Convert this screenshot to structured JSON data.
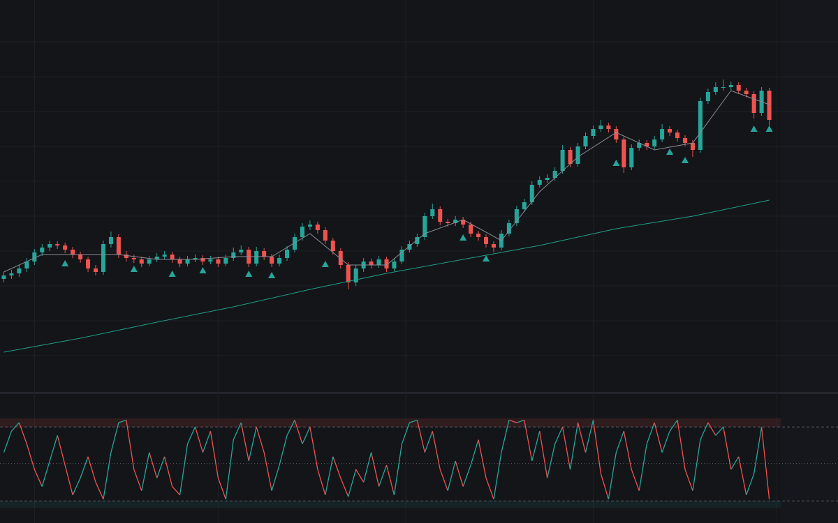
{
  "chart_data": [
    {
      "type": "candlestick",
      "up_color": "#26a69a",
      "down_color": "#ef5350",
      "ylim": [
        0,
        560
      ],
      "yticks": [
        50,
        100,
        150,
        200,
        250,
        300,
        350,
        400,
        450,
        500
      ],
      "xlim": [
        -0.5,
        101.5
      ],
      "xticks": [
        4,
        28,
        52.5,
        77,
        101
      ],
      "grid": true,
      "candles": [
        [
          160,
          170,
          155,
          165
        ],
        [
          165,
          173,
          160,
          168
        ],
        [
          168,
          180,
          163,
          175
        ],
        [
          175,
          190,
          170,
          185
        ],
        [
          185,
          203,
          180,
          198
        ],
        [
          198,
          210,
          193,
          205
        ],
        [
          205,
          215,
          200,
          210
        ],
        [
          210,
          214,
          203,
          208
        ],
        [
          208,
          212,
          197,
          202
        ],
        [
          202,
          206,
          190,
          195
        ],
        [
          195,
          199,
          183,
          188
        ],
        [
          188,
          192,
          170,
          175
        ],
        [
          175,
          180,
          165,
          170
        ],
        [
          170,
          215,
          166,
          210
        ],
        [
          210,
          228,
          205,
          220
        ],
        [
          220,
          224,
          190,
          195
        ],
        [
          195,
          200,
          185,
          190
        ],
        [
          190,
          195,
          183,
          188
        ],
        [
          188,
          192,
          177,
          182
        ],
        [
          182,
          193,
          178,
          188
        ],
        [
          188,
          197,
          184,
          192
        ],
        [
          192,
          200,
          188,
          195
        ],
        [
          195,
          199,
          183,
          188
        ],
        [
          188,
          192,
          177,
          182
        ],
        [
          182,
          193,
          178,
          188
        ],
        [
          188,
          195,
          184,
          190
        ],
        [
          190,
          194,
          180,
          185
        ],
        [
          185,
          193,
          181,
          188
        ],
        [
          188,
          192,
          177,
          182
        ],
        [
          182,
          195,
          178,
          190
        ],
        [
          190,
          205,
          186,
          198
        ],
        [
          198,
          208,
          194,
          202
        ],
        [
          202,
          206,
          177,
          182
        ],
        [
          182,
          206,
          178,
          200
        ],
        [
          200,
          204,
          187,
          192
        ],
        [
          192,
          196,
          177,
          182
        ],
        [
          182,
          195,
          178,
          190
        ],
        [
          190,
          207,
          186,
          202
        ],
        [
          202,
          225,
          198,
          220
        ],
        [
          220,
          240,
          215,
          235
        ],
        [
          235,
          244,
          230,
          238
        ],
        [
          238,
          242,
          225,
          230
        ],
        [
          230,
          234,
          210,
          215
        ],
        [
          215,
          219,
          195,
          200
        ],
        [
          200,
          204,
          175,
          180
        ],
        [
          180,
          184,
          145,
          155
        ],
        [
          155,
          180,
          150,
          175
        ],
        [
          175,
          190,
          170,
          185
        ],
        [
          185,
          189,
          175,
          180
        ],
        [
          180,
          193,
          176,
          188
        ],
        [
          188,
          192,
          170,
          175
        ],
        [
          175,
          190,
          171,
          185
        ],
        [
          185,
          207,
          181,
          202
        ],
        [
          202,
          215,
          198,
          210
        ],
        [
          210,
          225,
          206,
          220
        ],
        [
          220,
          255,
          216,
          250
        ],
        [
          250,
          268,
          246,
          260
        ],
        [
          260,
          264,
          237,
          242
        ],
        [
          242,
          246,
          235,
          240
        ],
        [
          240,
          250,
          236,
          245
        ],
        [
          245,
          249,
          233,
          238
        ],
        [
          238,
          242,
          220,
          225
        ],
        [
          225,
          229,
          215,
          220
        ],
        [
          220,
          224,
          205,
          210
        ],
        [
          210,
          214,
          198,
          205
        ],
        [
          205,
          230,
          201,
          225
        ],
        [
          225,
          245,
          221,
          240
        ],
        [
          240,
          265,
          236,
          260
        ],
        [
          260,
          275,
          256,
          270
        ],
        [
          270,
          300,
          266,
          295
        ],
        [
          295,
          307,
          291,
          302
        ],
        [
          302,
          310,
          298,
          305
        ],
        [
          305,
          320,
          301,
          315
        ],
        [
          315,
          352,
          311,
          345
        ],
        [
          345,
          349,
          320,
          325
        ],
        [
          325,
          355,
          321,
          350
        ],
        [
          350,
          370,
          346,
          365
        ],
        [
          365,
          380,
          361,
          375
        ],
        [
          375,
          388,
          371,
          380
        ],
        [
          380,
          384,
          370,
          375
        ],
        [
          375,
          379,
          355,
          360
        ],
        [
          360,
          364,
          312,
          320
        ],
        [
          320,
          353,
          316,
          348
        ],
        [
          348,
          360,
          344,
          355
        ],
        [
          355,
          359,
          345,
          350
        ],
        [
          350,
          365,
          346,
          360
        ],
        [
          360,
          382,
          356,
          375
        ],
        [
          375,
          379,
          365,
          370
        ],
        [
          370,
          374,
          357,
          362
        ],
        [
          362,
          366,
          350,
          355
        ],
        [
          355,
          359,
          335,
          345
        ],
        [
          345,
          420,
          341,
          415
        ],
        [
          415,
          433,
          411,
          428
        ],
        [
          428,
          442,
          424,
          435
        ],
        [
          435,
          446,
          430,
          435
        ],
        [
          435,
          443,
          431,
          438
        ],
        [
          438,
          442,
          425,
          430
        ],
        [
          430,
          434,
          420,
          425
        ],
        [
          425,
          429,
          390,
          398
        ],
        [
          398,
          435,
          394,
          430
        ],
        [
          430,
          434,
          380,
          388
        ]
      ],
      "series": [
        {
          "color": "#8a8d96",
          "x": [
            0,
            5,
            10,
            15,
            20,
            25,
            30,
            35,
            40,
            45,
            50,
            55,
            60,
            65,
            70,
            75,
            80,
            85,
            90,
            95,
            100
          ],
          "values": [
            170,
            195,
            195,
            195,
            188,
            188,
            192,
            192,
            225,
            180,
            180,
            225,
            245,
            215,
            285,
            335,
            370,
            345,
            355,
            430,
            410
          ]
        },
        {
          "color": "#1f9e8a",
          "x": [
            0,
            10,
            20,
            30,
            40,
            50,
            60,
            70,
            80,
            90,
            100
          ],
          "values": [
            55,
            75,
            98,
            120,
            145,
            168,
            188,
            208,
            232,
            250,
            273
          ]
        }
      ],
      "markers": {
        "color": "#26a69a",
        "x": [
          8,
          17,
          22,
          26,
          32,
          35,
          42,
          60,
          63,
          80,
          87,
          89,
          98,
          100
        ],
        "values": [
          182,
          174,
          167,
          172,
          167,
          165,
          181,
          219,
          189,
          326,
          342,
          330,
          375,
          375
        ]
      }
    },
    {
      "type": "oscillator",
      "ylim": [
        0,
        100
      ],
      "levels": [
        90,
        47,
        3
      ],
      "up_color": "#26a69a",
      "down_color": "#ef5350",
      "values": [
        60,
        85,
        95,
        70,
        40,
        20,
        50,
        80,
        45,
        10,
        30,
        55,
        25,
        5,
        60,
        95,
        98,
        40,
        15,
        60,
        30,
        55,
        20,
        10,
        70,
        90,
        60,
        85,
        30,
        5,
        75,
        95,
        50,
        90,
        60,
        15,
        45,
        80,
        98,
        70,
        90,
        40,
        10,
        55,
        30,
        8,
        40,
        25,
        60,
        20,
        45,
        10,
        70,
        95,
        98,
        60,
        85,
        40,
        15,
        50,
        20,
        45,
        75,
        30,
        5,
        60,
        98,
        95,
        98,
        50,
        85,
        30,
        70,
        90,
        40,
        95,
        60,
        98,
        35,
        5,
        60,
        85,
        40,
        15,
        70,
        95,
        60,
        85,
        98,
        40,
        15,
        75,
        95,
        80,
        90,
        40,
        55,
        10,
        35,
        90,
        5
      ]
    }
  ]
}
